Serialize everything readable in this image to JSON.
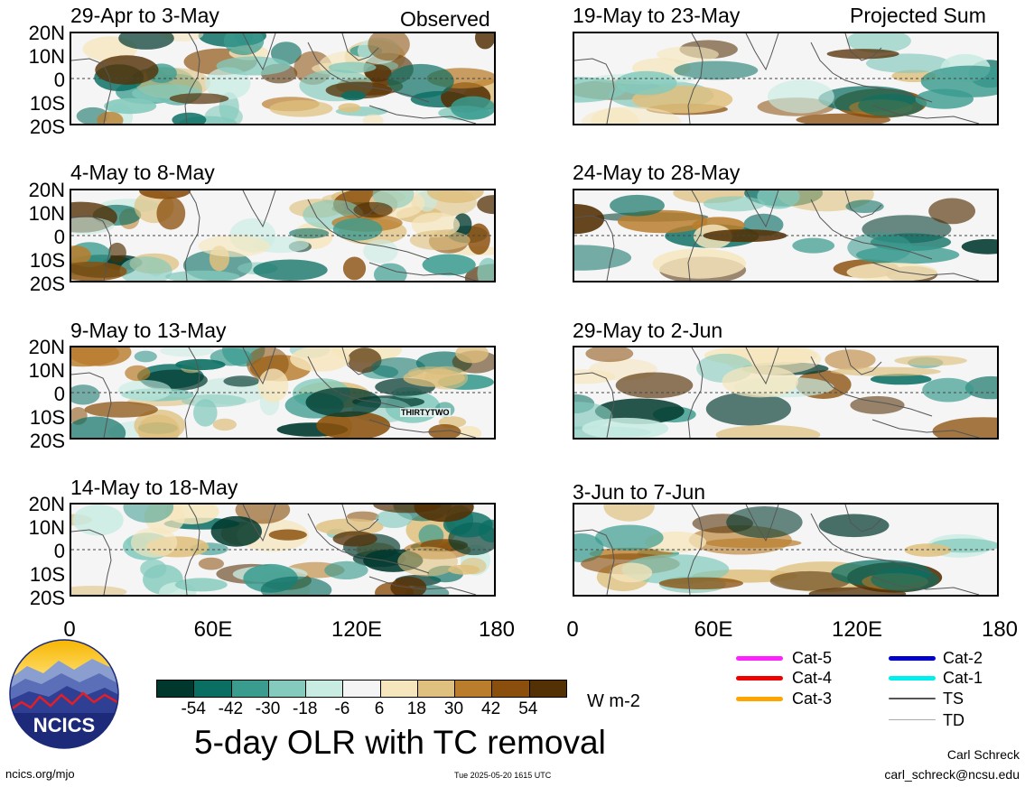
{
  "top_labels": {
    "left": "Observed",
    "right": "Projected Sum"
  },
  "panels_left": [
    {
      "title": "29-Apr to 3-May"
    },
    {
      "title": "4-May to 8-May"
    },
    {
      "title": "9-May to 13-May",
      "annotation": "THIRTYTWO"
    },
    {
      "title": "14-May to 18-May"
    }
  ],
  "panels_right": [
    {
      "title": "19-May to 23-May"
    },
    {
      "title": "24-May to 28-May"
    },
    {
      "title": "29-May to 2-Jun"
    },
    {
      "title": "3-Jun to 7-Jun"
    }
  ],
  "lat_labels": [
    "20N",
    "10N",
    "0",
    "10S",
    "20S"
  ],
  "lon_labels": [
    "0",
    "60E",
    "120E",
    "180"
  ],
  "colorbar": {
    "colors": [
      "#00382d",
      "#0a6e63",
      "#3a9b8f",
      "#84cabd",
      "#c8ebe2",
      "#f5f5f5",
      "#f6e6bd",
      "#dfc07e",
      "#b97d2c",
      "#8a4f0c",
      "#543005"
    ],
    "ticks": [
      "-54",
      "-42",
      "-30",
      "-18",
      "-6",
      "6",
      "18",
      "30",
      "42",
      "54"
    ],
    "units": "W m-2"
  },
  "main_title": "5-day OLR with TC removal",
  "legend": [
    {
      "label": "Cat-5",
      "color": "#ff22ff"
    },
    {
      "label": "Cat-4",
      "color": "#ee0000"
    },
    {
      "label": "Cat-3",
      "color": "#ffa500"
    },
    {
      "label": "Cat-2",
      "color": "#0000cc"
    },
    {
      "label": "Cat-1",
      "color": "#00eeee"
    },
    {
      "label": "TS",
      "color": "#555555"
    },
    {
      "label": "TD",
      "color": "#aaaaaa"
    }
  ],
  "logo": {
    "text": "NCICS"
  },
  "footer": {
    "url": "ncics.org/mjo",
    "timestamp": "Tue 2025-05-20 1615 UTC",
    "author": "Carl Schreck",
    "email": "carl_schreck@ncsu.edu"
  }
}
